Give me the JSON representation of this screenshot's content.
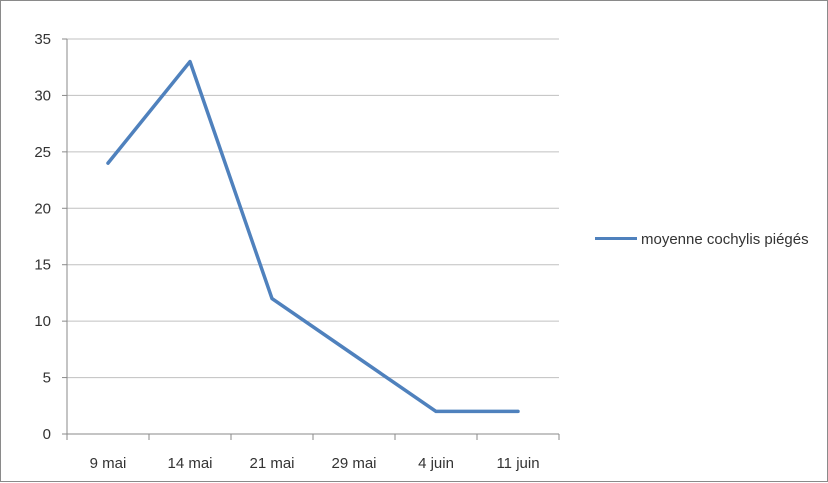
{
  "chart_data": {
    "type": "line",
    "categories": [
      "9 mai",
      "14 mai",
      "21 mai",
      "29 mai",
      "4 juin",
      "11 juin"
    ],
    "series": [
      {
        "name": "moyenne cochylis piégés",
        "values": [
          24,
          33,
          12,
          7,
          2,
          2
        ]
      }
    ],
    "y_ticks": [
      "0",
      "5",
      "10",
      "15",
      "20",
      "25",
      "30",
      "35"
    ],
    "ylim": [
      0,
      35
    ],
    "grid": true,
    "legend_position": "right",
    "colors": {
      "series": "#4f81bd",
      "grid": "#c0c0c0",
      "axis": "#8a8a8a"
    }
  }
}
